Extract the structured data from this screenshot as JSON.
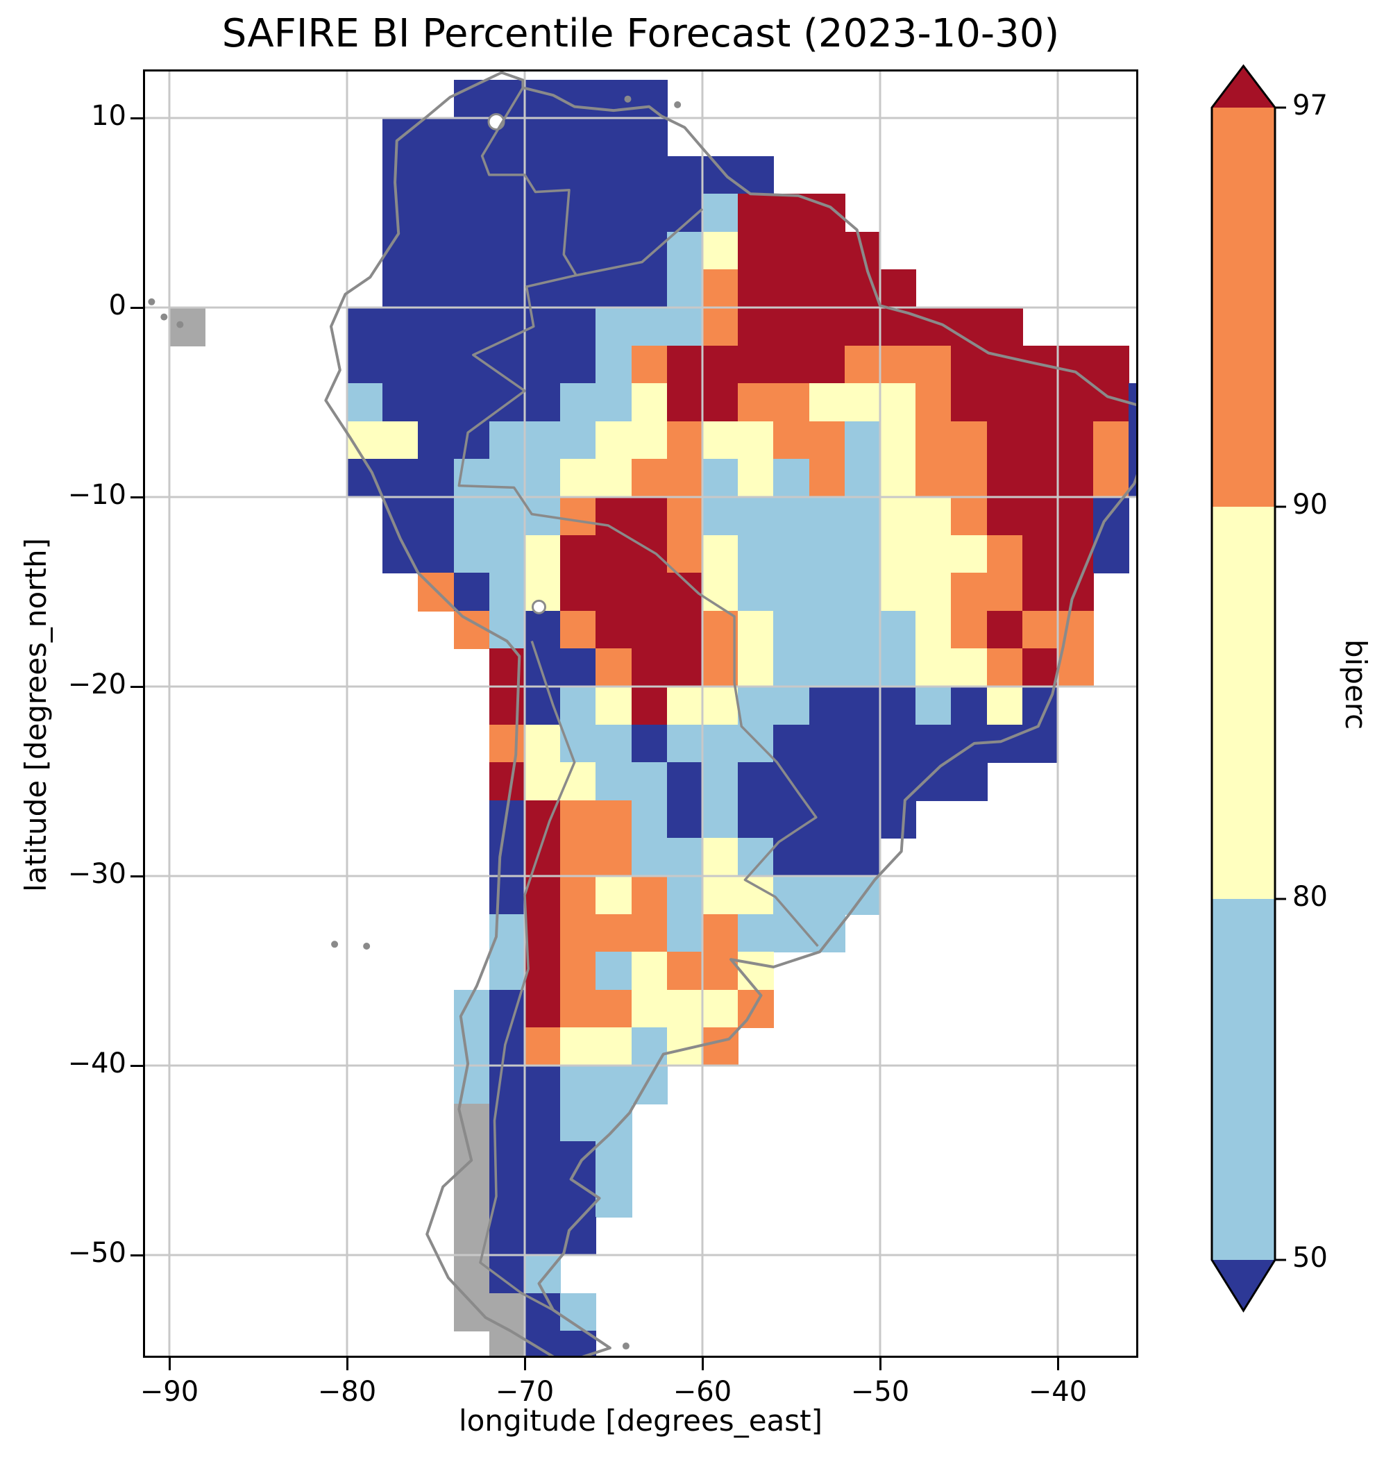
{
  "title": "SAFIRE BI Percentile Forecast (2023-10-30)",
  "axes": {
    "xlabel": "longitude [degrees_east]",
    "ylabel": "latitude [degrees_north]",
    "xticks": [
      {
        "value": -90,
        "label": "−90"
      },
      {
        "value": -80,
        "label": "−80"
      },
      {
        "value": -70,
        "label": "−70"
      },
      {
        "value": -60,
        "label": "−60"
      },
      {
        "value": -50,
        "label": "−50"
      },
      {
        "value": -40,
        "label": "−40"
      }
    ],
    "yticks": [
      {
        "value": 10,
        "label": "10"
      },
      {
        "value": 0,
        "label": "0"
      },
      {
        "value": -10,
        "label": "−10"
      },
      {
        "value": -20,
        "label": "−20"
      },
      {
        "value": -30,
        "label": "−30"
      },
      {
        "value": -40,
        "label": "−40"
      },
      {
        "value": -50,
        "label": "−50"
      }
    ]
  },
  "colorbar": {
    "label": "biperc",
    "ticks": [
      {
        "value": 97,
        "label": "97"
      },
      {
        "value": 90,
        "label": "90"
      },
      {
        "value": 80,
        "label": "80"
      },
      {
        "value": 50,
        "label": "50"
      }
    ],
    "segments_top_to_bottom": [
      "#f5894d",
      "#ffffbf",
      "#99c9e0"
    ],
    "extend_over_color": "#a51126",
    "extend_under_color": "#2d3896",
    "outline_color": "#000000"
  },
  "chart_data": {
    "type": "heatmap",
    "title": "SAFIRE BI Percentile Forecast (2023-10-30)",
    "xlabel": "longitude [degrees_east]",
    "ylabel": "latitude [degrees_north]",
    "variable": "biperc",
    "date": "2023-10-30",
    "xlim": [
      -91.5,
      -35.5
    ],
    "ylim": [
      -55.4,
      12.6
    ],
    "xticks": [
      -90,
      -80,
      -70,
      -60,
      -50,
      -40
    ],
    "yticks": [
      10,
      0,
      -10,
      -20,
      -30,
      -40,
      -50
    ],
    "grid_on": true,
    "levels": [
      50,
      80,
      90,
      97
    ],
    "extend": "both",
    "legend_position": "right",
    "palette": {
      "B": {
        "label": "below 50",
        "color": "#2d3896"
      },
      "b": {
        "label": "50–80",
        "color": "#99c9e0"
      },
      "y": {
        "label": "80–90",
        "color": "#ffffbf"
      },
      "o": {
        "label": "90–97",
        "color": "#f5894d"
      },
      "r": {
        "label": "above 97",
        "color": "#a51126"
      },
      "g": {
        "label": "no data (land)",
        "color": "#a8a8a8"
      }
    },
    "grid": {
      "origin_lon": -92,
      "origin_lat": 12,
      "cell_deg": 2,
      "cols": 29,
      "rows": [
        ".........BBBBBB..............",
        ".......BBBBBBBB..............",
        ".......BBBBBBBBBBB...........",
        ".......BBBBBBBBBbrrr.........",
        ".......BBBBBBBBbyrrrr........",
        ".......BBBBBBBBborrrrr.......",
        ".g....BBBBBBBbbborrrrrrrr....",
        "......BBBBBBBborrrrrooorrrrr.",
        "......bBBBBBbbyrrooyyyorrrrrB",
        "......yyBBbbbyyoyyoobyoorrroB",
        "......BBBbbbyyoobybobyoorrroB",
        ".......BBbbborrobbbbbyyorrrB.",
        ".......BBbbyrrroybbbbyyyorrB.",
        "........oBbyrrrrybbbbyyoorr..",
        ".........obBorrroybbbbyoroo..",
        "..........rBBorroybbbbyyoro..",
        "..........rBbyryybbBBBbByB...",
        "..........oybbBbbbBBBBBBBB...",
        "..........ryybbBbBBBBBBB.....",
        "..........BroobBbBBBBB.......",
        "..........BroobbybBBB........",
        "..........Broyobyybbb........",
        "..........brooobobbb.........",
        "..........brobyooy...........",
        ".........bBrooyyyo...........",
        ".........bBoyybyo............",
        ".........bBBbbb..............",
        ".........gBBbb...............",
        ".........gBBBb...............",
        ".........gBBBb...............",
        ".........gBBB................",
        ".........gBb.................",
        ".........ggBb................",
        "..........gBB................"
      ]
    }
  },
  "map": {
    "border_color": "#8a8a8a",
    "gridline_color": "#c8c8c8",
    "coastline": [
      [
        -71.3,
        12.4
      ],
      [
        -74.2,
        11.1
      ],
      [
        -75.6,
        10.0
      ],
      [
        -77.2,
        8.8
      ],
      [
        -77.3,
        6.6
      ],
      [
        -77.1,
        3.9
      ],
      [
        -78.7,
        1.6
      ],
      [
        -80.1,
        0.7
      ],
      [
        -80.9,
        -1.0
      ],
      [
        -80.4,
        -3.3
      ],
      [
        -81.2,
        -4.9
      ],
      [
        -79.8,
        -6.9
      ],
      [
        -78.6,
        -8.7
      ],
      [
        -77.0,
        -12.2
      ],
      [
        -76.0,
        -14.0
      ],
      [
        -73.5,
        -16.3
      ],
      [
        -71.0,
        -17.6
      ],
      [
        -70.3,
        -18.4
      ],
      [
        -70.5,
        -23.6
      ],
      [
        -71.4,
        -29.0
      ],
      [
        -71.6,
        -33.2
      ],
      [
        -72.7,
        -35.8
      ],
      [
        -73.6,
        -37.4
      ],
      [
        -73.2,
        -39.9
      ],
      [
        -73.7,
        -42.3
      ],
      [
        -73.0,
        -45.0
      ],
      [
        -74.6,
        -46.4
      ],
      [
        -75.5,
        -48.9
      ],
      [
        -74.3,
        -51.2
      ],
      [
        -72.2,
        -53.3
      ],
      [
        -70.8,
        -54.0
      ],
      [
        -67.8,
        -55.7
      ],
      [
        -65.2,
        -54.9
      ],
      [
        -68.4,
        -52.9
      ],
      [
        -69.2,
        -51.5
      ],
      [
        -67.8,
        -49.9
      ],
      [
        -67.5,
        -48.7
      ],
      [
        -65.8,
        -47.0
      ],
      [
        -67.4,
        -46.0
      ],
      [
        -66.8,
        -45.0
      ],
      [
        -65.2,
        -43.6
      ],
      [
        -64.1,
        -42.5
      ],
      [
        -62.2,
        -39.4
      ],
      [
        -58.5,
        -38.6
      ],
      [
        -57.5,
        -37.6
      ],
      [
        -56.7,
        -36.3
      ],
      [
        -58.4,
        -34.4
      ],
      [
        -56.0,
        -34.8
      ],
      [
        -53.4,
        -34.0
      ],
      [
        -51.8,
        -32.1
      ],
      [
        -50.3,
        -30.2
      ],
      [
        -48.8,
        -28.7
      ],
      [
        -48.6,
        -26.0
      ],
      [
        -46.6,
        -24.2
      ],
      [
        -44.7,
        -23.0
      ],
      [
        -43.2,
        -22.9
      ],
      [
        -41.1,
        -22.1
      ],
      [
        -40.3,
        -20.4
      ],
      [
        -39.7,
        -17.9
      ],
      [
        -39.2,
        -15.4
      ],
      [
        -37.4,
        -11.3
      ],
      [
        -35.7,
        -9.3
      ],
      [
        -34.9,
        -7.2
      ],
      [
        -35.3,
        -5.2
      ],
      [
        -37.2,
        -4.7
      ],
      [
        -39.0,
        -3.4
      ],
      [
        -41.5,
        -2.9
      ],
      [
        -43.9,
        -2.4
      ],
      [
        -46.5,
        -0.9
      ],
      [
        -48.4,
        -0.3
      ],
      [
        -50.0,
        0.1
      ],
      [
        -50.7,
        1.9
      ],
      [
        -51.3,
        4.1
      ],
      [
        -52.8,
        5.3
      ],
      [
        -54.6,
        5.9
      ],
      [
        -57.3,
        6.0
      ],
      [
        -58.6,
        6.9
      ],
      [
        -59.9,
        8.3
      ],
      [
        -61.0,
        9.5
      ],
      [
        -62.3,
        10.1
      ],
      [
        -63.0,
        10.6
      ],
      [
        -65.0,
        10.4
      ],
      [
        -67.2,
        10.6
      ],
      [
        -68.4,
        11.2
      ],
      [
        -70.1,
        11.6
      ],
      [
        -70.1,
        12.0
      ],
      [
        -71.3,
        12.4
      ]
    ],
    "borders": [
      [
        [
          -60.0,
          5.2
        ],
        [
          -63.4,
          2.4
        ],
        [
          -67.1,
          1.7
        ],
        [
          -69.9,
          1.1
        ],
        [
          -69.5,
          -1.0
        ],
        [
          -72.9,
          -2.5
        ],
        [
          -70.0,
          -4.4
        ],
        [
          -73.2,
          -6.6
        ],
        [
          -73.7,
          -9.4
        ],
        [
          -70.6,
          -9.5
        ],
        [
          -69.6,
          -10.9
        ],
        [
          -65.3,
          -11.5
        ],
        [
          -62.6,
          -13.0
        ],
        [
          -60.2,
          -15.1
        ],
        [
          -58.2,
          -16.3
        ],
        [
          -58.2,
          -19.8
        ],
        [
          -57.8,
          -22.1
        ],
        [
          -55.8,
          -24.0
        ],
        [
          -54.6,
          -25.6
        ],
        [
          -53.6,
          -26.9
        ],
        [
          -55.7,
          -28.2
        ],
        [
          -57.6,
          -30.2
        ],
        [
          -55.9,
          -31.1
        ],
        [
          -53.5,
          -33.7
        ]
      ],
      [
        [
          -69.6,
          -17.6
        ],
        [
          -68.4,
          -21.0
        ],
        [
          -67.2,
          -24.0
        ],
        [
          -68.6,
          -27.1
        ],
        [
          -70.0,
          -31.0
        ],
        [
          -69.8,
          -34.9
        ],
        [
          -71.1,
          -38.9
        ],
        [
          -71.7,
          -42.9
        ],
        [
          -71.6,
          -46.9
        ],
        [
          -72.5,
          -50.4
        ],
        [
          -70.2,
          -52.0
        ],
        [
          -68.4,
          -52.9
        ]
      ],
      [
        [
          -70.1,
          11.6
        ],
        [
          -72.4,
          8.0
        ],
        [
          -72.0,
          7.0
        ],
        [
          -70.0,
          7.0
        ],
        [
          -69.4,
          6.1
        ],
        [
          -67.5,
          6.2
        ],
        [
          -67.8,
          2.8
        ],
        [
          -67.1,
          1.7
        ]
      ]
    ],
    "islands": [
      [
        -91.0,
        0.3
      ],
      [
        -90.3,
        -0.5
      ],
      [
        -89.4,
        -0.9
      ],
      [
        -61.4,
        10.7
      ],
      [
        -64.2,
        11.0
      ],
      [
        -78.9,
        -33.7
      ],
      [
        -80.7,
        -33.6
      ],
      [
        -64.3,
        -54.8
      ]
    ],
    "lakes": [
      {
        "lon": -71.6,
        "lat": 9.8,
        "r": 11
      },
      {
        "lon": -69.2,
        "lat": -15.8,
        "r": 9
      }
    ]
  }
}
